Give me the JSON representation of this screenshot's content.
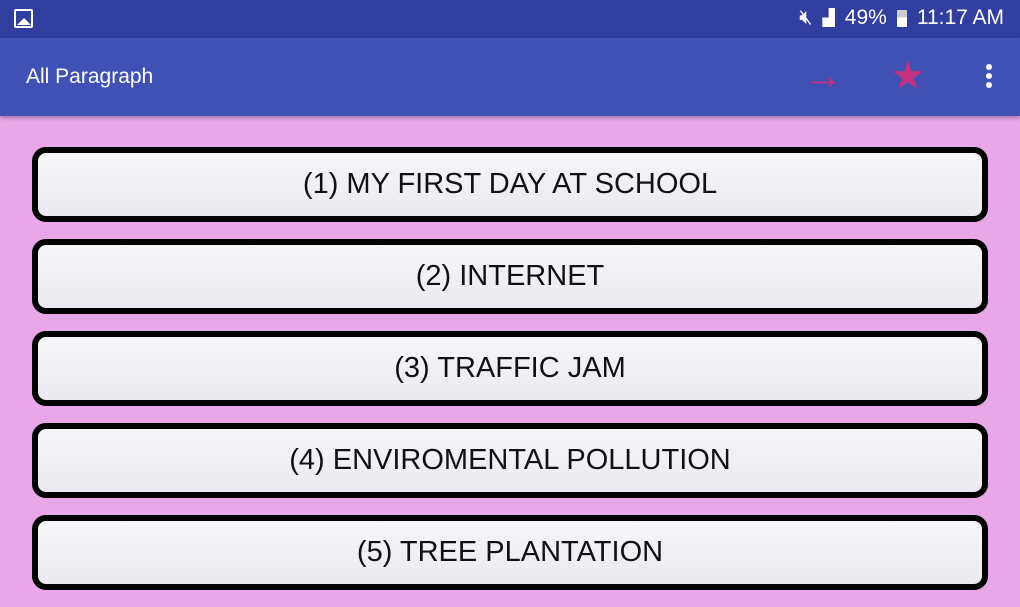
{
  "status": {
    "battery": "49%",
    "time": "11:17 AM"
  },
  "appbar": {
    "title": "All Paragraph",
    "accent": "#c2307f"
  },
  "items": [
    {
      "label": "(1) MY FIRST DAY AT SCHOOL"
    },
    {
      "label": "(2) INTERNET"
    },
    {
      "label": "(3) TRAFFIC JAM"
    },
    {
      "label": "(4) ENVIROMENTAL POLLUTION"
    },
    {
      "label": "(5) TREE PLANTATION"
    }
  ]
}
